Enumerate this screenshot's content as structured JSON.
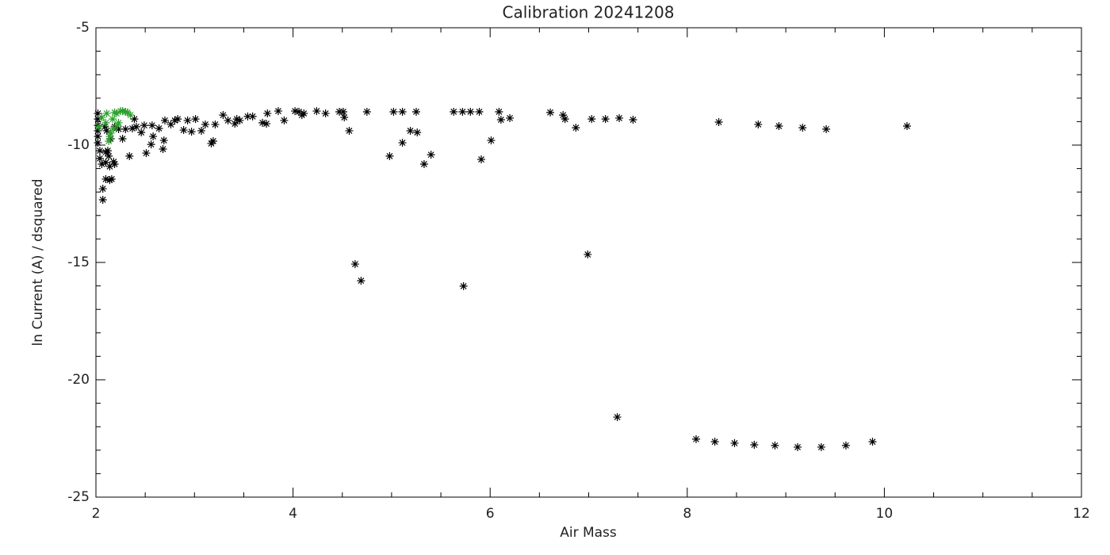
{
  "chart_data": {
    "type": "scatter",
    "title": "Calibration 20241208",
    "x_label": "Air Mass",
    "y_label": "ln Current (A) / dsquared",
    "xlim": [
      2,
      12
    ],
    "ylim": [
      -25,
      -5
    ],
    "xticks": [
      2,
      4,
      6,
      8,
      10,
      12
    ],
    "yticks": [
      -25,
      -20,
      -15,
      -10,
      -5
    ],
    "xminor": 4,
    "yminor": 5,
    "marker": "asterisk",
    "series": [
      {
        "color": "#000000",
        "x": [
          2.02,
          2.02,
          2.02,
          2.02,
          2.02,
          2.02,
          2.04,
          2.04,
          2.06,
          2.07,
          2.07,
          2.1,
          2.1,
          2.12,
          2.1,
          2.14,
          2.16,
          2.14,
          2.18,
          2.19,
          2.13,
          2.09,
          2.11,
          2.15,
          2.19,
          2.23,
          2.27,
          2.3,
          2.34,
          2.37,
          2.39,
          2.41,
          2.46,
          2.49,
          2.51,
          2.56,
          2.57,
          2.58,
          2.64,
          2.68,
          2.69,
          2.7,
          2.76,
          2.8,
          2.83,
          2.89,
          2.93,
          2.97,
          3.01,
          3.07,
          3.11,
          3.17,
          3.19,
          3.21,
          3.29,
          3.34,
          3.41,
          3.43,
          3.46,
          3.54,
          3.59,
          3.69,
          3.73,
          3.74,
          3.85,
          3.91,
          4.02,
          4.06,
          4.09,
          4.11,
          4.24,
          4.33,
          4.47,
          4.51,
          4.52,
          4.57,
          4.63,
          4.69,
          4.75,
          4.98,
          5.02,
          5.11,
          5.11,
          5.19,
          5.25,
          5.26,
          5.33,
          5.4,
          5.63,
          5.72,
          5.73,
          5.8,
          5.89,
          5.91,
          6.01,
          6.09,
          6.11,
          6.2,
          6.61,
          6.74,
          6.76,
          6.87,
          6.99,
          7.03,
          7.17,
          7.29,
          7.31,
          7.45,
          8.09,
          8.28,
          8.32,
          8.48,
          8.68,
          8.72,
          8.89,
          8.93,
          9.12,
          9.17,
          9.36,
          9.41,
          9.61,
          9.88,
          10.23
        ],
        "values": [
          -8.65,
          -8.89,
          -9.16,
          -9.39,
          -9.63,
          -9.9,
          -10.24,
          -10.57,
          -10.81,
          -11.86,
          -12.33,
          -10.3,
          -10.74,
          -10.24,
          -11.45,
          -11.49,
          -11.45,
          -10.91,
          -10.71,
          -10.81,
          -10.47,
          -9.22,
          -9.39,
          -9.73,
          -9.22,
          -9.32,
          -9.73,
          -9.32,
          -10.47,
          -9.29,
          -8.89,
          -9.22,
          -9.46,
          -9.16,
          -10.34,
          -9.97,
          -9.16,
          -9.63,
          -9.29,
          -10.17,
          -9.8,
          -8.95,
          -9.12,
          -8.95,
          -8.89,
          -9.36,
          -8.95,
          -9.43,
          -8.89,
          -9.39,
          -9.12,
          -9.93,
          -9.83,
          -9.12,
          -8.72,
          -8.95,
          -9.09,
          -8.89,
          -8.95,
          -8.78,
          -8.78,
          -9.05,
          -9.09,
          -8.65,
          -8.55,
          -8.95,
          -8.55,
          -8.58,
          -8.72,
          -8.65,
          -8.55,
          -8.65,
          -8.58,
          -8.58,
          -8.82,
          -9.39,
          -15.07,
          -15.78,
          -8.58,
          -10.47,
          -8.58,
          -8.58,
          -9.9,
          -9.39,
          -8.58,
          -9.46,
          -10.81,
          -10.41,
          -8.58,
          -8.58,
          -16.01,
          -8.58,
          -8.58,
          -10.61,
          -9.8,
          -8.58,
          -8.92,
          -8.85,
          -8.61,
          -8.72,
          -8.89,
          -9.26,
          -14.66,
          -8.89,
          -8.89,
          -21.59,
          -8.85,
          -8.92,
          -22.53,
          -22.64,
          -9.02,
          -22.7,
          -22.77,
          -9.12,
          -22.8,
          -9.19,
          -22.87,
          -9.26,
          -22.87,
          -9.32,
          -22.8,
          -22.64,
          -9.19
        ]
      },
      {
        "color": "#2ca02c",
        "x": [
          2.03,
          2.06,
          2.1,
          2.11,
          2.13,
          2.14,
          2.17,
          2.19,
          2.21,
          2.23,
          2.25,
          2.27,
          2.3,
          2.32,
          2.35,
          2.22,
          2.18,
          2.15
        ],
        "values": [
          -9.22,
          -8.82,
          -9.05,
          -8.65,
          -9.83,
          -9.63,
          -8.89,
          -8.61,
          -8.65,
          -9.05,
          -8.55,
          -8.55,
          -8.58,
          -8.61,
          -8.72,
          -9.16,
          -9.29,
          -9.49
        ]
      }
    ]
  }
}
